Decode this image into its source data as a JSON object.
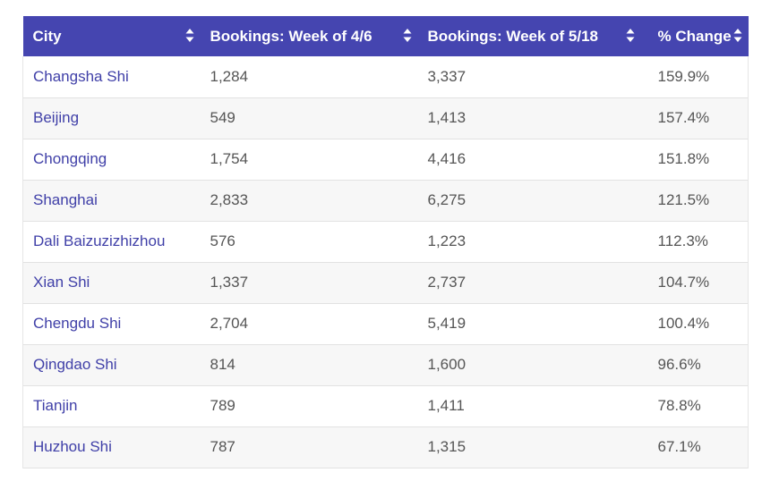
{
  "table": {
    "header_color": "#4545b0",
    "city_text_color": "#4040a8",
    "columns": [
      {
        "label": "City",
        "sort_icon": "sort-icon"
      },
      {
        "label": "Bookings: Week of 4/6",
        "sort_icon": "sort-icon"
      },
      {
        "label": "Bookings: Week of 5/18",
        "sort_icon": "sort-icon"
      },
      {
        "label": "% Change",
        "sort_icon": "sort-icon"
      }
    ],
    "rows": [
      {
        "city": "Changsha Shi",
        "week1": "1,284",
        "week2": "3,337",
        "change": "159.9%"
      },
      {
        "city": "Beijing",
        "week1": "549",
        "week2": "1,413",
        "change": "157.4%"
      },
      {
        "city": "Chongqing",
        "week1": "1,754",
        "week2": "4,416",
        "change": "151.8%"
      },
      {
        "city": "Shanghai",
        "week1": "2,833",
        "week2": "6,275",
        "change": "121.5%"
      },
      {
        "city": "Dali Baizuzizhizhou",
        "week1": "576",
        "week2": "1,223",
        "change": "112.3%"
      },
      {
        "city": "Xian Shi",
        "week1": "1,337",
        "week2": "2,737",
        "change": "104.7%"
      },
      {
        "city": "Chengdu Shi",
        "week1": "2,704",
        "week2": "5,419",
        "change": "100.4%"
      },
      {
        "city": "Qingdao Shi",
        "week1": "814",
        "week2": "1,600",
        "change": "96.6%"
      },
      {
        "city": "Tianjin",
        "week1": "789",
        "week2": "1,411",
        "change": "78.8%"
      },
      {
        "city": "Huzhou Shi",
        "week1": "787",
        "week2": "1,315",
        "change": "67.1%"
      }
    ]
  }
}
